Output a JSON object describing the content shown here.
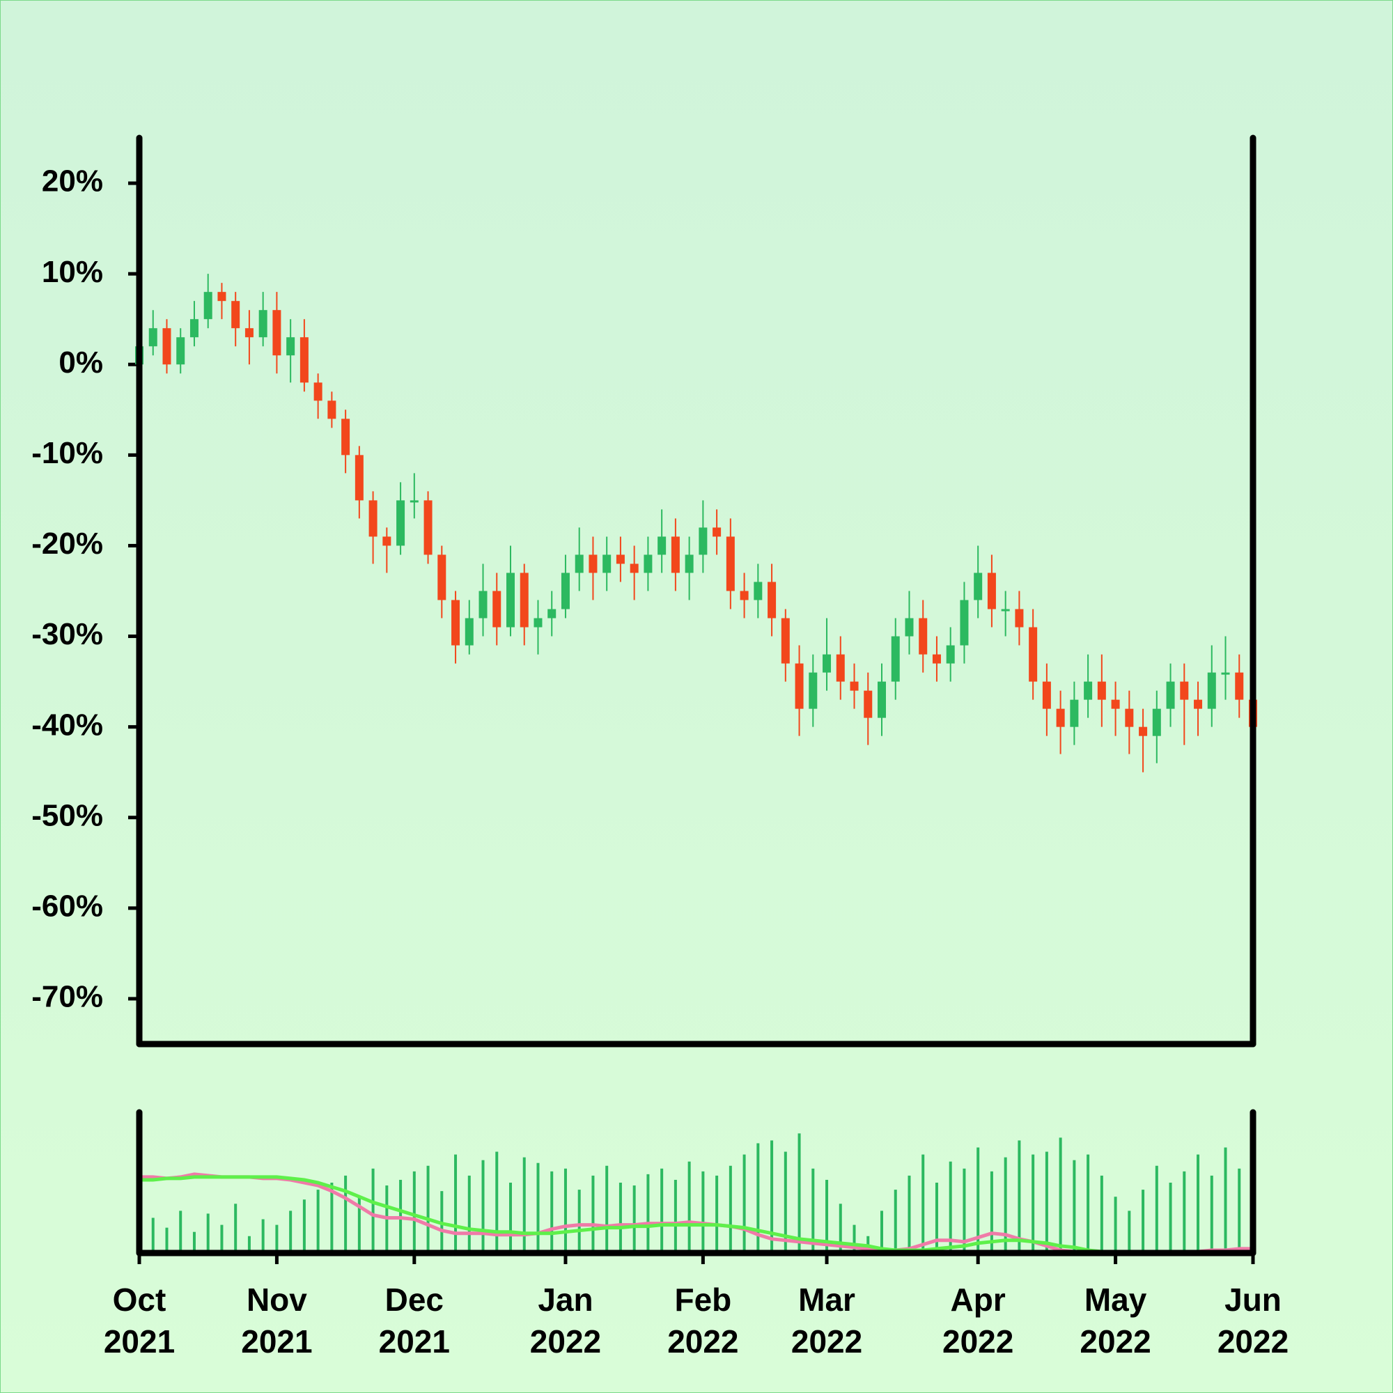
{
  "chart_data": [
    {
      "type": "candlestick",
      "categories": [
        "Oct 2021",
        null,
        null,
        null,
        null,
        null,
        null,
        null,
        null,
        null,
        "Nov 2021",
        null,
        null,
        null,
        null,
        null,
        null,
        null,
        null,
        null,
        "Dec 2021",
        null,
        null,
        null,
        null,
        null,
        null,
        null,
        null,
        null,
        null,
        "Jan 2022",
        null,
        null,
        null,
        null,
        null,
        null,
        null,
        null,
        null,
        "Feb 2022",
        null,
        null,
        null,
        null,
        null,
        null,
        null,
        null,
        "Mar 2022",
        null,
        null,
        null,
        null,
        null,
        null,
        null,
        null,
        null,
        null,
        "Apr 2022",
        null,
        null,
        null,
        null,
        null,
        null,
        null,
        null,
        null,
        "May 2022",
        null,
        null,
        null,
        null,
        null,
        null,
        null,
        null,
        null,
        "Jun 2022"
      ],
      "open": [
        0,
        2,
        4,
        0,
        3,
        5,
        8,
        7,
        4,
        3,
        6,
        1,
        3,
        -2,
        -4,
        -6,
        -10,
        -15,
        -19,
        -20,
        -15,
        -15,
        -21,
        -26,
        -31,
        -28,
        -25,
        -29,
        -23,
        -29,
        -28,
        -27,
        -23,
        -21,
        -23,
        -21,
        -22,
        -23,
        -21,
        -19,
        -23,
        -21,
        -18,
        -19,
        -25,
        -26,
        -24,
        -28,
        -33,
        -38,
        -34,
        -32,
        -35,
        -36,
        -39,
        -35,
        -30,
        -28,
        -32,
        -33,
        -31,
        -26,
        -23,
        -27,
        -27,
        -29,
        -35,
        -38,
        -40,
        -37,
        -35,
        -37,
        -38,
        -40,
        -41,
        -38,
        -35,
        -37,
        -38,
        -34,
        -34,
        -37
      ],
      "high": [
        4,
        6,
        5,
        4,
        7,
        10,
        9,
        8,
        6,
        8,
        8,
        5,
        5,
        -1,
        -3,
        -5,
        -9,
        -14,
        -18,
        -13,
        -12,
        -14,
        -20,
        -25,
        -26,
        -22,
        -23,
        -20,
        -22,
        -26,
        -25,
        -21,
        -18,
        -19,
        -19,
        -19,
        -20,
        -19,
        -16,
        -17,
        -19,
        -15,
        -16,
        -17,
        -23,
        -22,
        -22,
        -27,
        -31,
        -32,
        -28,
        -30,
        -33,
        -34,
        -33,
        -28,
        -25,
        -26,
        -30,
        -29,
        -24,
        -20,
        -21,
        -25,
        -25,
        -27,
        -33,
        -36,
        -35,
        -32,
        -32,
        -35,
        -36,
        -38,
        -36,
        -33,
        -33,
        -35,
        -31,
        -30,
        -32,
        -36
      ],
      "low": [
        -1,
        1,
        -1,
        -1,
        2,
        4,
        5,
        2,
        0,
        2,
        -1,
        -2,
        -3,
        -6,
        -7,
        -12,
        -17,
        -22,
        -23,
        -21,
        -17,
        -22,
        -28,
        -33,
        -32,
        -30,
        -31,
        -30,
        -31,
        -32,
        -30,
        -28,
        -25,
        -26,
        -25,
        -24,
        -26,
        -25,
        -23,
        -25,
        -26,
        -23,
        -21,
        -27,
        -28,
        -28,
        -30,
        -35,
        -41,
        -40,
        -36,
        -37,
        -38,
        -42,
        -41,
        -37,
        -32,
        -34,
        -35,
        -35,
        -33,
        -28,
        -29,
        -30,
        -31,
        -37,
        -41,
        -43,
        -42,
        -39,
        -40,
        -41,
        -43,
        -45,
        -44,
        -40,
        -42,
        -41,
        -40,
        -37,
        -39,
        -43
      ],
      "close": [
        2,
        4,
        0,
        3,
        5,
        8,
        7,
        4,
        3,
        6,
        1,
        3,
        -2,
        -4,
        -6,
        -10,
        -15,
        -19,
        -20,
        -15,
        -15,
        -21,
        -26,
        -31,
        -28,
        -25,
        -29,
        -23,
        -29,
        -28,
        -27,
        -23,
        -21,
        -23,
        -21,
        -22,
        -23,
        -21,
        -19,
        -23,
        -21,
        -18,
        -19,
        -25,
        -26,
        -24,
        -28,
        -33,
        -38,
        -34,
        -32,
        -35,
        -36,
        -39,
        -35,
        -30,
        -28,
        -32,
        -33,
        -31,
        -26,
        -23,
        -27,
        -27,
        -29,
        -35,
        -38,
        -40,
        -37,
        -35,
        -37,
        -38,
        -40,
        -41,
        -38,
        -35,
        -37,
        -38,
        -34,
        -34,
        -37,
        -40
      ],
      "up_color": "#2cb960",
      "down_color": "#f2471c",
      "ylim": [
        -75,
        25
      ],
      "yticks": [
        {
          "value": -70,
          "label": "-70%"
        },
        {
          "value": -60,
          "label": "-60%"
        },
        {
          "value": -50,
          "label": "-50%"
        },
        {
          "value": -40,
          "label": "-40%"
        },
        {
          "value": -30,
          "label": "-30%"
        },
        {
          "value": -20,
          "label": "-20%"
        },
        {
          "value": -10,
          "label": "-10%"
        },
        {
          "value": 0,
          "label": "0%"
        },
        {
          "value": 10,
          "label": "10%"
        },
        {
          "value": 20,
          "label": "20%"
        }
      ]
    },
    {
      "type": "volume",
      "values": [
        22,
        25,
        18,
        30,
        15,
        28,
        20,
        35,
        12,
        24,
        20,
        30,
        38,
        45,
        50,
        55,
        40,
        60,
        48,
        52,
        58,
        62,
        44,
        70,
        55,
        66,
        72,
        50,
        68,
        64,
        58,
        60,
        45,
        55,
        62,
        50,
        48,
        56,
        60,
        52,
        65,
        58,
        55,
        62,
        70,
        78,
        80,
        72,
        85,
        60,
        52,
        35,
        20,
        12,
        30,
        45,
        55,
        70,
        50,
        65,
        60,
        75,
        58,
        68,
        80,
        70,
        72,
        82,
        66,
        70,
        55,
        40,
        30,
        45,
        62,
        50,
        58,
        70,
        55,
        75,
        60,
        82
      ],
      "color": "#2cb960",
      "ylim": [
        0,
        100
      ],
      "lines": [
        {
          "color": "#f07aa8",
          "values": [
            54,
            54,
            53,
            54,
            56,
            55,
            54,
            54,
            54,
            53,
            53,
            52,
            50,
            48,
            44,
            39,
            33,
            27,
            25,
            25,
            24,
            20,
            16,
            14,
            14,
            14,
            13,
            13,
            13,
            14,
            17,
            19,
            20,
            20,
            19,
            20,
            20,
            21,
            21,
            21,
            22,
            21,
            20,
            19,
            17,
            13,
            10,
            9,
            8,
            7,
            6,
            5,
            4,
            3,
            2,
            2,
            3,
            6,
            9,
            9,
            8,
            11,
            14,
            13,
            10,
            8,
            5,
            2,
            1,
            0,
            0,
            0,
            0,
            0,
            0,
            0,
            1,
            1,
            2,
            2,
            3,
            3
          ]
        },
        {
          "color": "#5ef04a",
          "values": [
            52,
            52,
            53,
            53,
            54,
            54,
            54,
            54,
            54,
            54,
            54,
            53,
            52,
            50,
            47,
            44,
            40,
            36,
            33,
            30,
            27,
            24,
            21,
            19,
            17,
            16,
            15,
            15,
            14,
            14,
            14,
            15,
            16,
            17,
            18,
            18,
            19,
            19,
            20,
            20,
            20,
            20,
            20,
            19,
            18,
            16,
            14,
            12,
            10,
            9,
            8,
            7,
            6,
            5,
            3,
            2,
            2,
            2,
            3,
            4,
            5,
            7,
            8,
            9,
            9,
            8,
            7,
            5,
            4,
            2,
            1,
            0,
            0,
            0,
            0,
            0,
            0,
            0,
            0,
            0,
            0,
            0
          ]
        }
      ]
    }
  ]
}
